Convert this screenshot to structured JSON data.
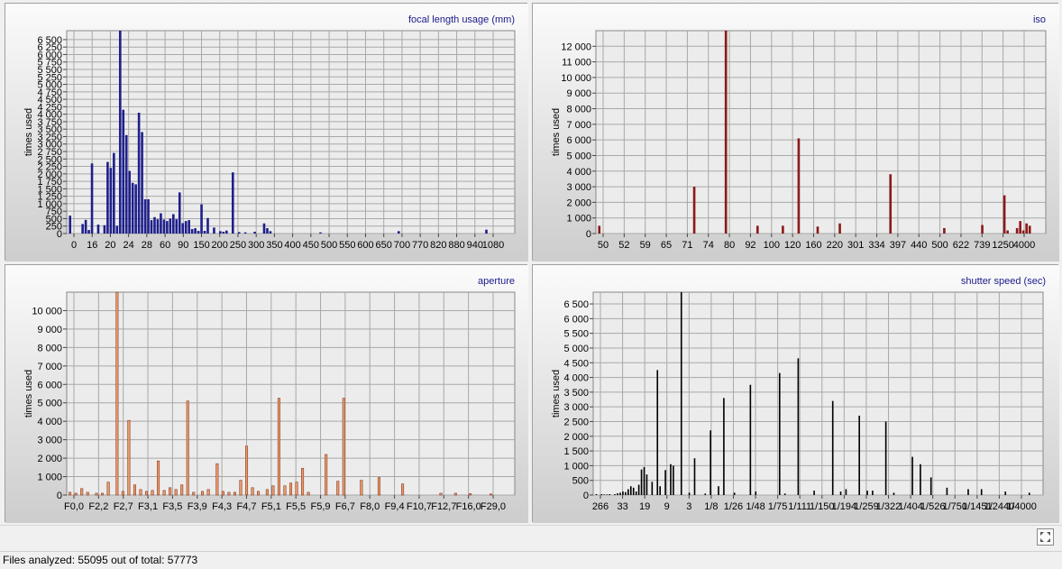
{
  "window": {
    "status_prefix": "Files analyzed: ",
    "files_analyzed": "55095",
    "status_middle": " out of total: ",
    "total_files": "57773",
    "expand_icon": "expand-arrows-icon"
  },
  "chart_data": [
    {
      "type": "bar",
      "title": "focal length usage (mm)",
      "ylabel": "times used",
      "xlabel": "",
      "color": "#1f1f8c",
      "ylim": [
        0,
        6800
      ],
      "yticks": [
        0,
        250,
        500,
        750,
        1000,
        1250,
        1500,
        1750,
        2000,
        2250,
        2500,
        2750,
        3000,
        3250,
        3500,
        3750,
        4000,
        4250,
        4500,
        4750,
        5000,
        5250,
        5500,
        5750,
        6000,
        6250,
        6500
      ],
      "ytick_labels": [
        "0",
        "250",
        "500",
        "750",
        "1 000",
        "1 250",
        "1 500",
        "1 750",
        "2 000",
        "2 250",
        "2 500",
        "2 750",
        "3 000",
        "3 250",
        "3 500",
        "3 750",
        "4 000",
        "4 250",
        "4 500",
        "4 750",
        "5 000",
        "5 250",
        "5 500",
        "5 750",
        "6 000",
        "6 250",
        "6 500"
      ],
      "xtick_labels": [
        "0",
        "16",
        "20",
        "24",
        "28",
        "60",
        "90",
        "150",
        "200",
        "250",
        "300",
        "350",
        "400",
        "450",
        "500",
        "550",
        "600",
        "650",
        "700",
        "770",
        "820",
        "880",
        "940",
        "1080"
      ],
      "values": [
        600,
        0,
        0,
        0,
        320,
        460,
        120,
        2350,
        0,
        300,
        0,
        280,
        2400,
        2200,
        2700,
        260,
        6800,
        4150,
        3300,
        2100,
        1700,
        1650,
        4050,
        3400,
        1150,
        1150,
        450,
        550,
        480,
        680,
        470,
        420,
        500,
        650,
        480,
        1380,
        350,
        420,
        450,
        150,
        180,
        90,
        980,
        90,
        520,
        0,
        200,
        0,
        80,
        60,
        100,
        0,
        2050,
        0,
        50,
        0,
        40,
        0,
        0,
        60,
        0,
        0,
        340,
        180,
        80,
        0,
        0,
        0,
        0,
        0,
        0,
        0,
        0,
        0,
        0,
        0,
        0,
        0,
        0,
        0,
        40,
        0,
        0,
        0,
        0,
        0,
        0,
        0,
        0,
        0,
        0,
        0,
        0,
        0,
        0,
        0,
        0,
        0,
        0,
        0,
        0,
        0,
        0,
        0,
        0,
        80,
        0,
        0,
        0,
        0,
        0,
        0,
        0,
        0,
        0,
        0,
        0,
        0,
        0,
        0,
        0,
        0,
        0,
        0,
        0,
        0,
        0,
        0,
        0,
        0,
        0,
        0,
        0,
        130,
        0,
        0,
        0,
        0,
        0,
        0,
        0,
        0
      ]
    },
    {
      "type": "bar",
      "title": "iso",
      "ylabel": "times used",
      "xlabel": "",
      "color": "#8b1a1a",
      "ylim": [
        0,
        13000
      ],
      "yticks": [
        0,
        1000,
        2000,
        3000,
        4000,
        5000,
        6000,
        7000,
        8000,
        9000,
        10000,
        11000,
        12000
      ],
      "ytick_labels": [
        "0",
        "1 000",
        "2 000",
        "3 000",
        "4 000",
        "5 000",
        "6 000",
        "7 000",
        "8 000",
        "9 000",
        "10 000",
        "11 000",
        "12 000"
      ],
      "xtick_labels": [
        "50",
        "52",
        "59",
        "65",
        "71",
        "74",
        "80",
        "92",
        "100",
        "120",
        "160",
        "220",
        "301",
        "334",
        "397",
        "440",
        "500",
        "622",
        "739",
        "1250",
        "4000"
      ],
      "values": [
        500,
        0,
        0,
        0,
        0,
        0,
        0,
        0,
        0,
        0,
        0,
        0,
        0,
        0,
        0,
        0,
        0,
        0,
        0,
        0,
        0,
        0,
        0,
        0,
        0,
        0,
        0,
        0,
        0,
        0,
        3000,
        0,
        0,
        0,
        0,
        0,
        0,
        0,
        0,
        0,
        13000,
        0,
        0,
        0,
        0,
        0,
        0,
        0,
        0,
        0,
        500,
        0,
        0,
        0,
        0,
        0,
        0,
        0,
        500,
        0,
        0,
        0,
        0,
        6100,
        0,
        0,
        0,
        0,
        0,
        450,
        0,
        0,
        0,
        0,
        0,
        0,
        650,
        0,
        0,
        0,
        0,
        0,
        0,
        0,
        0,
        0,
        0,
        0,
        0,
        0,
        0,
        0,
        3800,
        0,
        0,
        0,
        0,
        0,
        0,
        0,
        0,
        0,
        0,
        0,
        0,
        0,
        0,
        0,
        0,
        350,
        0,
        0,
        0,
        0,
        0,
        0,
        0,
        0,
        0,
        0,
        0,
        550,
        0,
        0,
        0,
        0,
        0,
        0,
        2450,
        200,
        0,
        0,
        350,
        800,
        200,
        650,
        500,
        0,
        0,
        0,
        0
      ]
    },
    {
      "type": "bar",
      "title": "aperture",
      "ylabel": "times used",
      "xlabel": "",
      "color": "#ea9c72",
      "ylim": [
        0,
        11000
      ],
      "yticks": [
        0,
        1000,
        2000,
        3000,
        4000,
        5000,
        6000,
        7000,
        8000,
        9000,
        10000
      ],
      "ytick_labels": [
        "0",
        "1 000",
        "2 000",
        "3 000",
        "4 000",
        "5 000",
        "6 000",
        "7 000",
        "8 000",
        "9 000",
        "10 000"
      ],
      "xtick_labels": [
        "F0,0",
        "F2,2",
        "F2,7",
        "F3,1",
        "F3,5",
        "F3,9",
        "F4,3",
        "F4,7",
        "F5,1",
        "F5,5",
        "F5,9",
        "F6,7",
        "F8,0",
        "F9,4",
        "F10,7",
        "F12,7",
        "F16,0",
        "F29,0"
      ],
      "values": [
        150,
        0,
        100,
        0,
        350,
        0,
        150,
        0,
        0,
        100,
        0,
        100,
        0,
        700,
        0,
        0,
        11000,
        0,
        200,
        0,
        4050,
        0,
        550,
        0,
        300,
        0,
        200,
        0,
        250,
        0,
        1850,
        0,
        250,
        0,
        400,
        0,
        300,
        0,
        550,
        0,
        5100,
        0,
        150,
        0,
        0,
        200,
        0,
        300,
        0,
        0,
        1700,
        0,
        200,
        0,
        150,
        0,
        150,
        0,
        800,
        0,
        2650,
        0,
        400,
        0,
        200,
        0,
        0,
        300,
        0,
        500,
        0,
        5250,
        0,
        500,
        0,
        650,
        0,
        700,
        0,
        1450,
        0,
        150,
        0,
        0,
        0,
        0,
        0,
        2200,
        0,
        0,
        0,
        750,
        0,
        5250,
        0,
        0,
        0,
        0,
        0,
        800,
        0,
        0,
        0,
        0,
        0,
        950,
        0,
        0,
        0,
        0,
        0,
        0,
        0,
        600,
        0,
        0,
        0,
        0,
        0,
        0,
        0,
        0,
        0,
        0,
        0,
        0,
        100,
        0,
        0,
        0,
        0,
        100,
        0,
        0,
        0,
        0,
        80,
        0,
        0,
        0,
        0,
        0,
        0,
        60,
        0,
        0,
        0,
        0,
        0,
        0,
        0
      ]
    },
    {
      "type": "bar",
      "title": "shutter speed (sec)",
      "ylabel": "times used",
      "xlabel": "",
      "color": "#000000",
      "ylim": [
        0,
        6900
      ],
      "yticks": [
        0,
        500,
        1000,
        1500,
        2000,
        2500,
        3000,
        3500,
        4000,
        4500,
        5000,
        5500,
        6000,
        6500
      ],
      "ytick_labels": [
        "0",
        "500",
        "1 000",
        "1 500",
        "2 000",
        "2 500",
        "3 000",
        "3 500",
        "4 000",
        "4 500",
        "5 000",
        "5 500",
        "6 000",
        "6 500"
      ],
      "xtick_labels": [
        "266",
        "33",
        "19",
        "9",
        "3",
        "1/8",
        "1/26",
        "1/48",
        "1/75",
        "1/111",
        "1/150",
        "1/194",
        "1/259",
        "1/322",
        "1/404",
        "1/526",
        "1/750",
        "1/1451",
        "1/2440",
        "1/4000"
      ],
      "values": [
        30,
        0,
        30,
        20,
        20,
        30,
        0,
        30,
        60,
        80,
        120,
        100,
        200,
        300,
        250,
        120,
        350,
        870,
        950,
        700,
        0,
        450,
        0,
        4250,
        300,
        0,
        850,
        0,
        1050,
        1000,
        0,
        0,
        6900,
        0,
        0,
        80,
        0,
        1250,
        0,
        0,
        0,
        50,
        0,
        2200,
        0,
        0,
        300,
        0,
        3300,
        0,
        0,
        0,
        80,
        0,
        0,
        0,
        0,
        0,
        3750,
        0,
        120,
        0,
        0,
        0,
        0,
        0,
        0,
        0,
        0,
        4150,
        0,
        50,
        0,
        0,
        0,
        0,
        4650,
        0,
        0,
        0,
        0,
        0,
        150,
        0,
        0,
        0,
        0,
        0,
        0,
        3200,
        0,
        0,
        120,
        0,
        200,
        0,
        0,
        0,
        0,
        2700,
        0,
        0,
        150,
        0,
        150,
        0,
        0,
        0,
        0,
        2500,
        0,
        0,
        80,
        0,
        0,
        0,
        0,
        0,
        0,
        1300,
        0,
        0,
        1050,
        0,
        0,
        0,
        600,
        0,
        0,
        0,
        0,
        0,
        250,
        0,
        0,
        0,
        0,
        0,
        0,
        0,
        200,
        0,
        0,
        0,
        0,
        200,
        0,
        0,
        0,
        0,
        0,
        0,
        0,
        0,
        120,
        0,
        0,
        0,
        0,
        0,
        0,
        0,
        0,
        80,
        0,
        0,
        0,
        0
      ]
    }
  ]
}
